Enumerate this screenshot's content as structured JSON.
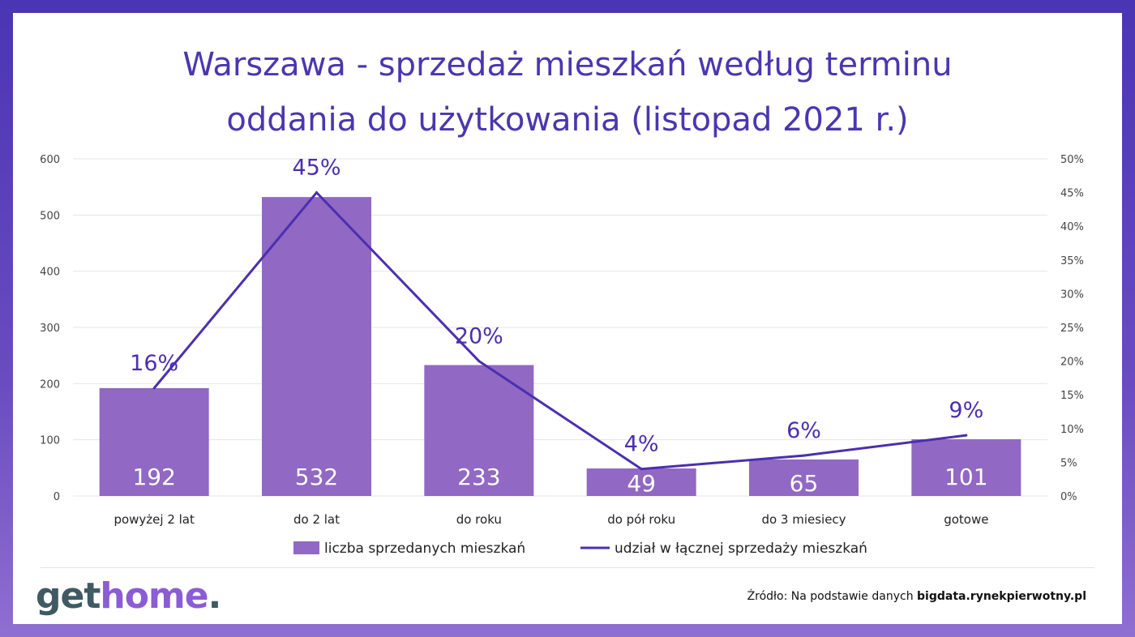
{
  "title_line1": "Warszawa - sprzedaż mieszkań według terminu",
  "title_line2": "oddania do użytkowania (listopad 2021 r.)",
  "logo": {
    "part1": "get",
    "part2": "home",
    "part3": "."
  },
  "source": {
    "prefix": "Źródło: Na podstawie danych ",
    "link": "bigdata.rynekpierwotny.pl"
  },
  "colors": {
    "bar": "#9168c3",
    "line": "#4b2fae",
    "title": "#4b36b0",
    "grid": "#e4e4e4"
  },
  "chart_data": {
    "type": "bar",
    "categories": [
      "powyżej 2 lat",
      "do 2 lat",
      "do roku",
      "do pół roku",
      "do 3 miesiecy",
      "gotowe"
    ],
    "series": [
      {
        "name": "liczba sprzedanych mieszkań",
        "kind": "bar",
        "axis": "left",
        "values": [
          192,
          532,
          233,
          49,
          65,
          101
        ],
        "labels": [
          "192",
          "532",
          "233",
          "49",
          "65",
          "101"
        ]
      },
      {
        "name": "udział w łącznej sprzedaży mieszkań",
        "kind": "line",
        "axis": "right",
        "values": [
          16,
          45,
          20,
          4,
          6,
          9
        ],
        "labels": [
          "16%",
          "45%",
          "20%",
          "4%",
          "6%",
          "9%"
        ]
      }
    ],
    "yleft": {
      "min": 0,
      "max": 600,
      "ticks": [
        "0",
        "100",
        "200",
        "300",
        "400",
        "500",
        "600"
      ]
    },
    "yright": {
      "min": 0,
      "max": 50,
      "ticks": [
        "0%",
        "5%",
        "10%",
        "15%",
        "20%",
        "25%",
        "30%",
        "35%",
        "40%",
        "45%",
        "50%"
      ]
    },
    "legend": "bottom",
    "grid": true
  }
}
